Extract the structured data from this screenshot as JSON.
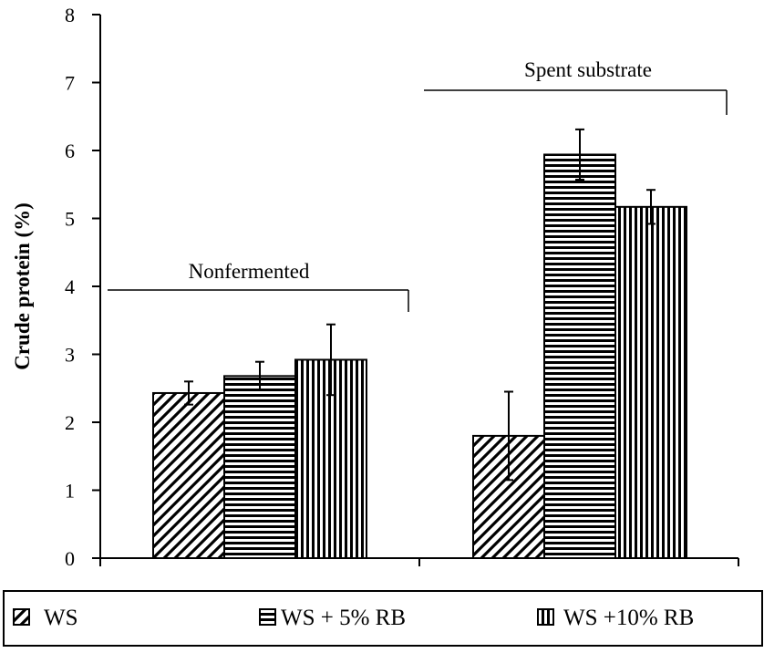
{
  "chart_data": {
    "type": "bar",
    "title": "",
    "xlabel": "",
    "ylabel": "Crude protein (%)",
    "ylim": [
      0,
      8
    ],
    "yticks": [
      "0",
      "1",
      "2",
      "3",
      "4",
      "5",
      "6",
      "7",
      "8"
    ],
    "grid": false,
    "legend_position": "bottom",
    "groups": [
      "Nonfermented",
      "Spent substrate"
    ],
    "series": [
      {
        "name": "WS",
        "pattern": "diagonal-hatch",
        "values": [
          2.43,
          1.8
        ],
        "errors": [
          0.17,
          0.65
        ]
      },
      {
        "name": "WS + 5% RB",
        "pattern": "horizontal-stripes",
        "values": [
          2.68,
          5.94
        ],
        "errors": [
          0.21,
          0.37
        ]
      },
      {
        "name": "WS +10% RB",
        "pattern": "vertical-stripes",
        "values": [
          2.92,
          5.17
        ],
        "errors": [
          0.52,
          0.25
        ]
      }
    ],
    "colors": {
      "ink": "#000000",
      "background": "#ffffff"
    }
  }
}
